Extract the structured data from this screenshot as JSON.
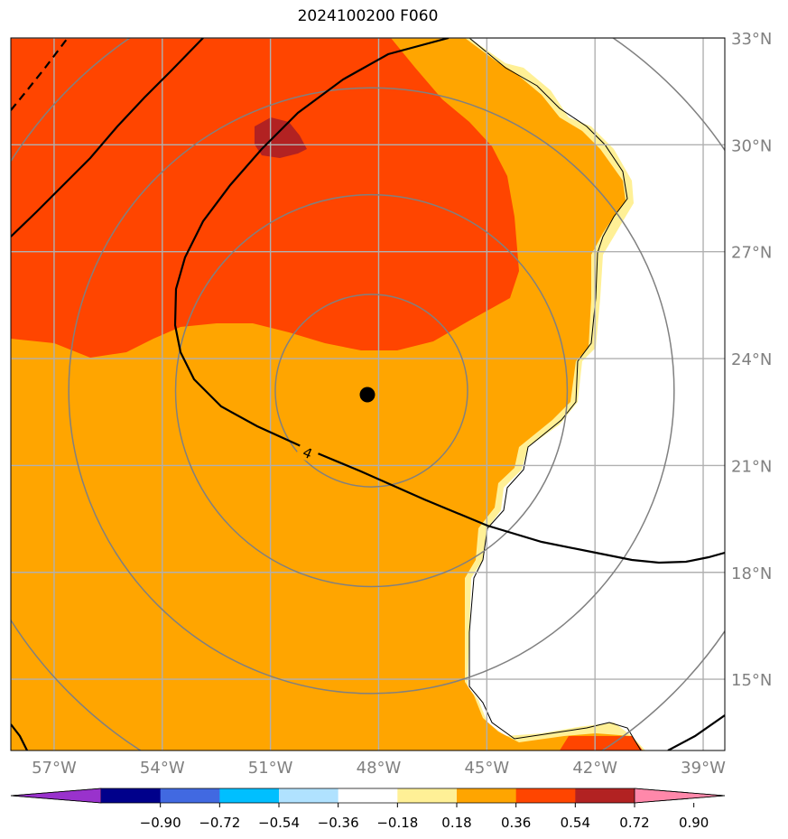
{
  "title": "2024100200 F060",
  "map": {
    "lon_range": [
      -58.2,
      -38.4
    ],
    "lat_range": [
      13.0,
      33.0
    ],
    "lon_ticks": [
      {
        "value": -57,
        "label": "57°W"
      },
      {
        "value": -54,
        "label": "54°W"
      },
      {
        "value": -51,
        "label": "51°W"
      },
      {
        "value": -48,
        "label": "48°W"
      },
      {
        "value": -45,
        "label": "45°W"
      },
      {
        "value": -42,
        "label": "42°W"
      },
      {
        "value": -39,
        "label": "39°W"
      }
    ],
    "lat_ticks": [
      {
        "value": 15,
        "label": "15°N"
      },
      {
        "value": 18,
        "label": "18°N"
      },
      {
        "value": 21,
        "label": "21°N"
      },
      {
        "value": 24,
        "label": "24°N"
      },
      {
        "value": 27,
        "label": "27°N"
      },
      {
        "value": 30,
        "label": "30°N"
      },
      {
        "value": 33,
        "label": "33°N"
      }
    ],
    "center": {
      "lon": -48.2,
      "lat": 23.1
    },
    "range_rings_deg": [
      2.7,
      5.5,
      8.5,
      12
    ],
    "contour_label": "4",
    "colors": {
      "fill_036_054": "#ffa500",
      "fill_054_072": "#ff4500",
      "fill_072_090": "#b22222",
      "fill_018_036": "#fff096",
      "grid": "#b0b0b0",
      "ring": "#808080",
      "contour": "#000000"
    }
  },
  "colorbar": {
    "colors": [
      "#9932cc",
      "#00008b",
      "#4169e1",
      "#00bfff",
      "#b0e2ff",
      "#ffffff",
      "#fff096",
      "#ffa500",
      "#ff4500",
      "#b22222",
      "#ff88aa"
    ],
    "ticks": [
      "−0.90",
      "−0.72",
      "−0.54",
      "−0.36",
      "−0.18",
      "0.18",
      "0.36",
      "0.54",
      "0.72",
      "0.90"
    ]
  }
}
